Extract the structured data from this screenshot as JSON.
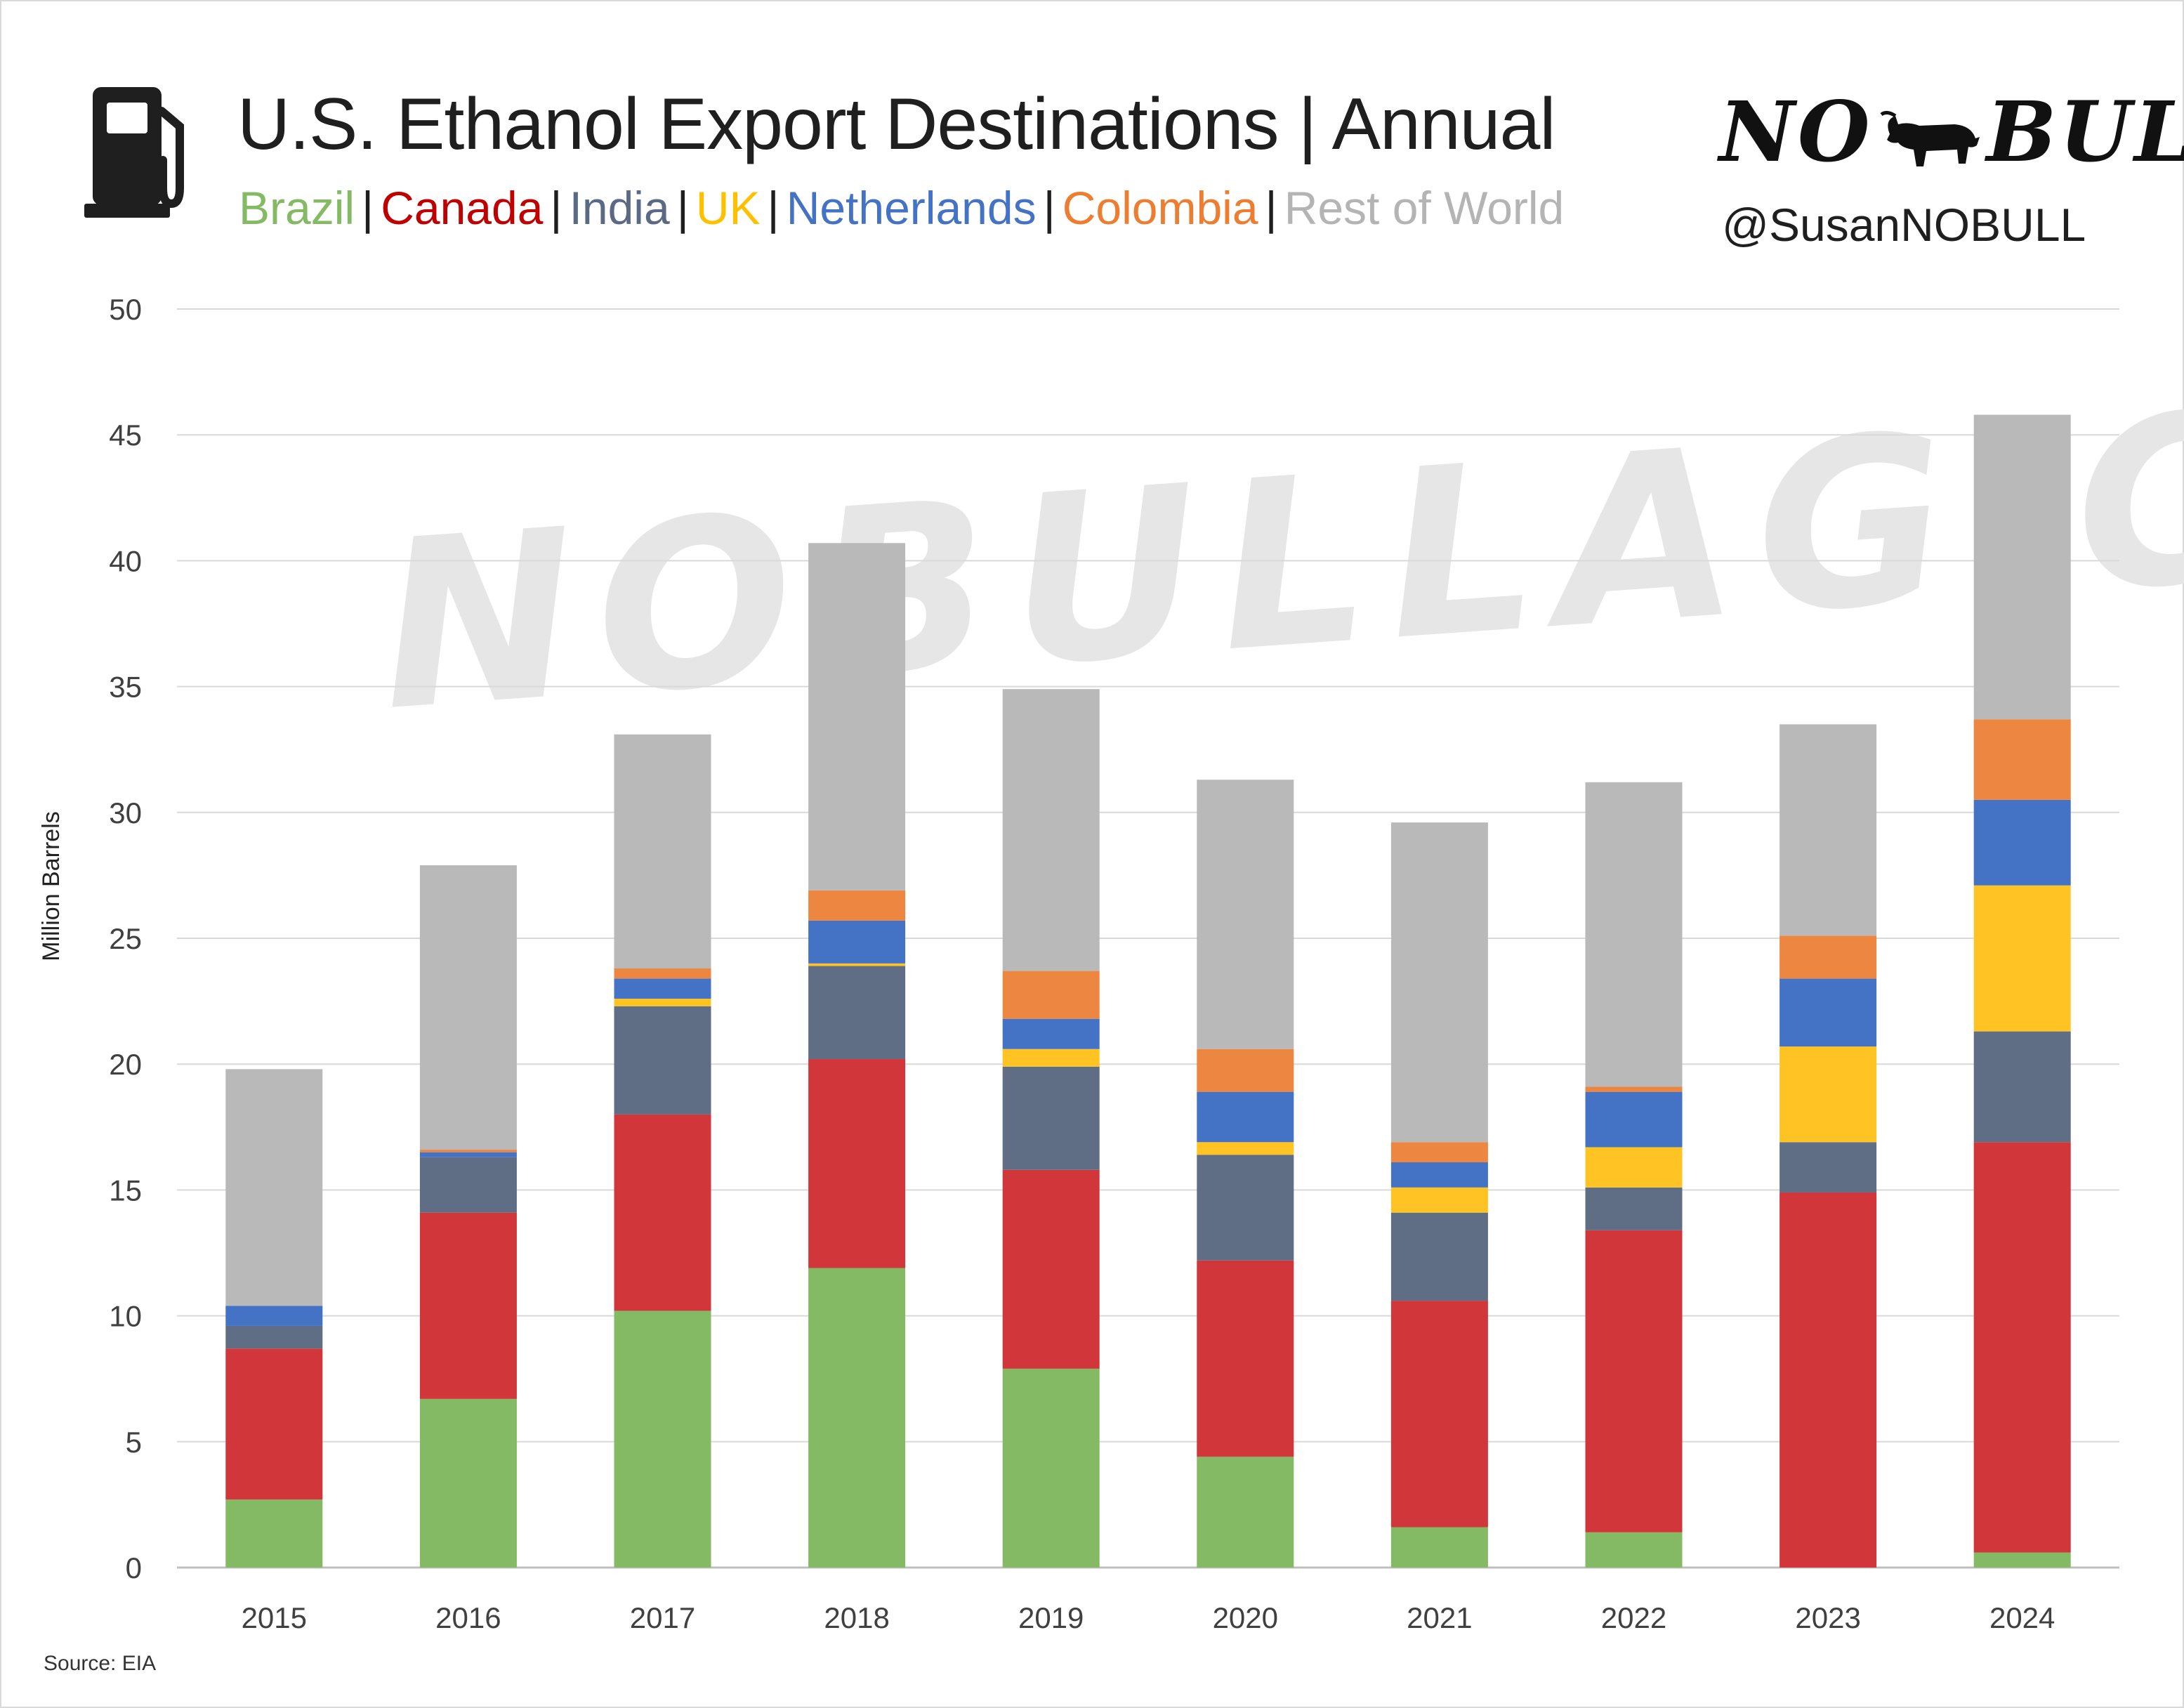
{
  "header": {
    "title": "U.S. Ethanol Export Destinations | Annual",
    "legend": [
      {
        "label": "Brazil",
        "color": "#84ba64"
      },
      {
        "label": "Canada",
        "color": "#c00000"
      },
      {
        "label": "India",
        "color": "#5a6a85"
      },
      {
        "label": "UK",
        "color": "#ffc000"
      },
      {
        "label": "Netherlands",
        "color": "#4472c4"
      },
      {
        "label": "Colombia",
        "color": "#ed7d31"
      },
      {
        "label": "Rest of World",
        "color": "#b4b4b4"
      }
    ],
    "separator": "|",
    "pump_icon": "fuel-pump-icon"
  },
  "brand": {
    "logo_left": "NO",
    "logo_right": "BULL",
    "logo_icon": "bull-icon",
    "handle": "@SusanNOBULL",
    "watermark": "NOBULLAG.COM"
  },
  "footer": {
    "source": "Source: EIA"
  },
  "chart_data": {
    "type": "bar",
    "stacked": true,
    "ylabel": "Million Barrels",
    "xlabel": "",
    "ylim": [
      0,
      50
    ],
    "yticks": [
      0,
      5,
      10,
      15,
      20,
      25,
      30,
      35,
      40,
      45,
      50
    ],
    "grid": true,
    "categories": [
      "2015",
      "2016",
      "2017",
      "2018",
      "2019",
      "2020",
      "2021",
      "2022",
      "2023",
      "2024"
    ],
    "series": [
      {
        "name": "Brazil",
        "color": "#84ba64",
        "values": [
          2.7,
          6.7,
          10.2,
          11.9,
          7.9,
          4.4,
          1.6,
          1.4,
          0.0,
          0.6
        ]
      },
      {
        "name": "Canada",
        "color": "#d0363a",
        "values": [
          6.0,
          7.4,
          7.8,
          8.3,
          7.9,
          7.8,
          9.0,
          12.0,
          14.9,
          16.3
        ]
      },
      {
        "name": "India",
        "color": "#5f6e85",
        "values": [
          0.9,
          2.2,
          4.3,
          3.7,
          4.1,
          4.2,
          3.5,
          1.7,
          2.0,
          4.4
        ]
      },
      {
        "name": "UK",
        "color": "#ffc423",
        "values": [
          0.0,
          0.0,
          0.3,
          0.1,
          0.7,
          0.5,
          1.0,
          1.6,
          3.8,
          5.8
        ]
      },
      {
        "name": "Netherlands",
        "color": "#4472c4",
        "values": [
          0.8,
          0.2,
          0.8,
          1.7,
          1.2,
          2.0,
          1.0,
          2.2,
          2.7,
          3.4
        ]
      },
      {
        "name": "Colombia",
        "color": "#ed8640",
        "values": [
          0.0,
          0.1,
          0.4,
          1.2,
          1.9,
          1.7,
          0.8,
          0.2,
          1.7,
          3.2
        ]
      },
      {
        "name": "Rest of World",
        "color": "#b9b9b9",
        "values": [
          9.4,
          11.3,
          9.3,
          13.8,
          11.2,
          10.7,
          12.7,
          12.1,
          8.4,
          12.1
        ]
      }
    ]
  }
}
